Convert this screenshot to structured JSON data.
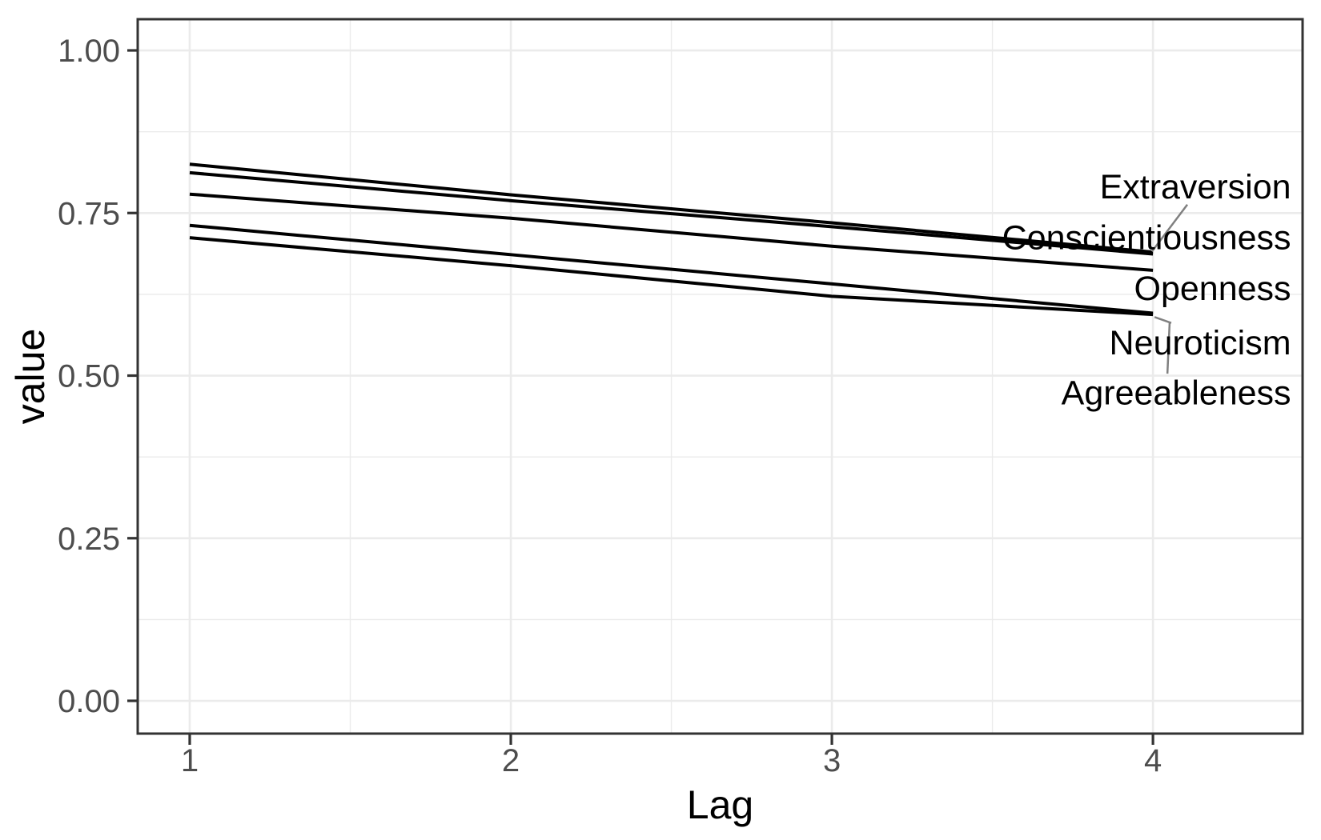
{
  "chart_data": {
    "type": "line",
    "title": "",
    "xlabel": "Lag",
    "ylabel": "value",
    "x": [
      1,
      2,
      3,
      4
    ],
    "x_tick_labels": [
      "1",
      "2",
      "3",
      "4"
    ],
    "y_ticks": [
      0.0,
      0.25,
      0.5,
      0.75,
      1.0
    ],
    "y_tick_labels": [
      "0.00",
      "0.25",
      "0.50",
      "0.75",
      "1.00"
    ],
    "xlim": [
      0.838,
      4.466
    ],
    "ylim": [
      -0.0504,
      1.048
    ],
    "grid": true,
    "legend_position": "direct-labels-right",
    "series": [
      {
        "name": "Extraversion",
        "values": [
          0.825,
          0.778,
          0.735,
          0.69
        ]
      },
      {
        "name": "Conscientiousness",
        "values": [
          0.812,
          0.769,
          0.729,
          0.687
        ]
      },
      {
        "name": "Openness",
        "values": [
          0.779,
          0.742,
          0.699,
          0.662
        ]
      },
      {
        "name": "Neuroticism",
        "values": [
          0.731,
          0.686,
          0.641,
          0.596
        ]
      },
      {
        "name": "Agreeableness",
        "values": [
          0.712,
          0.669,
          0.622,
          0.594
        ]
      }
    ],
    "annotations": [
      {
        "label": "Extraversion",
        "label_x": 4.43,
        "label_y": 0.791,
        "segment": {
          "x1": 4.107,
          "y1": 0.763,
          "x2": 3.997,
          "y2": 0.691
        }
      },
      {
        "label": "Conscientiousness",
        "label_x": 4.43,
        "label_y": 0.713,
        "segment": null
      },
      {
        "label": "Openness",
        "label_x": 4.43,
        "label_y": 0.635,
        "segment": null
      },
      {
        "label": "Neuroticism",
        "label_x": 4.43,
        "label_y": 0.551,
        "segment": {
          "x1": 4.057,
          "y1": 0.581,
          "x2": 4.005,
          "y2": 0.59
        }
      },
      {
        "label": "Agreeableness",
        "label_x": 4.43,
        "label_y": 0.474,
        "segment": {
          "x1": 4.045,
          "y1": 0.503,
          "x2": 4.052,
          "y2": 0.582
        }
      }
    ],
    "style": {
      "line_color": "#000000",
      "label_color": "#000000",
      "leader_color": "#808080",
      "grid_color": "#EBEBEB",
      "panel_border_color": "#333333",
      "tick_color": "#333333",
      "tick_label_color": "#4D4D4D",
      "axis_title_color": "#000000",
      "panel_background": "#FFFFFF"
    }
  }
}
